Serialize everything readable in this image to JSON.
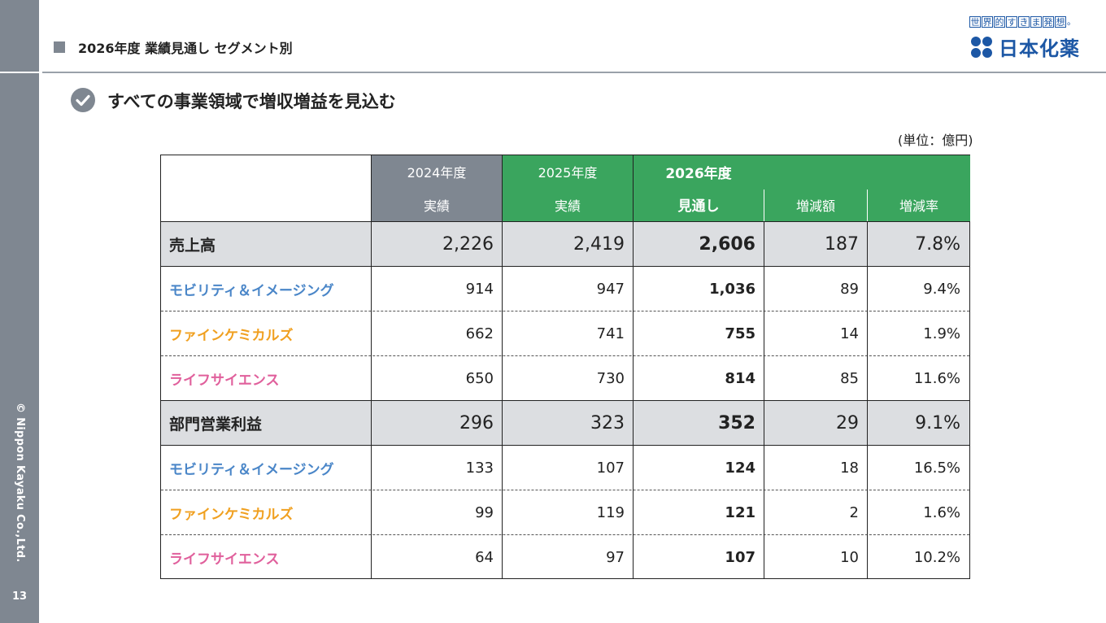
{
  "header": {
    "title": "2026年度 業績見通し セグメント別",
    "slogan_chars": [
      "世",
      "界",
      "的",
      "す",
      "き",
      "ま",
      "発",
      "想"
    ],
    "slogan_dot": "。",
    "logo_text": "日本化薬",
    "headline": "すべての事業領域で増収増益を見込む",
    "unit": "(単位：億円)"
  },
  "sidebar": {
    "copyright": "© Nippon Kayaku Co.,Ltd.",
    "page_number": "13"
  },
  "colors": {
    "brand_blue": "#1c57a5",
    "header_gray": "#7f8791",
    "header_green": "#3aa55e",
    "mobility": "#4a86c8",
    "fine_chemicals": "#f0a020",
    "life_science": "#e0609c",
    "band_gray": "#dcdee1"
  },
  "table": {
    "headers": {
      "y2024": "2024年度",
      "y2024_sub": "実績",
      "y2025": "2025年度",
      "y2025_sub": "実績",
      "y2026": "2026年度",
      "y2026_sub": "見通し",
      "diff": "増減額",
      "rate": "増減率"
    },
    "rows": [
      {
        "label": "売上高",
        "type": "total",
        "v2024": "2,226",
        "v2025": "2,419",
        "v2026": "2,606",
        "diff": "187",
        "rate": "7.8%"
      },
      {
        "label": "モビリティ＆イメージング",
        "type": "mobility",
        "v2024": "914",
        "v2025": "947",
        "v2026": "1,036",
        "diff": "89",
        "rate": "9.4%"
      },
      {
        "label": "ファインケミカルズ",
        "type": "fine",
        "v2024": "662",
        "v2025": "741",
        "v2026": "755",
        "diff": "14",
        "rate": "1.9%"
      },
      {
        "label": "ライフサイエンス",
        "type": "life",
        "v2024": "650",
        "v2025": "730",
        "v2026": "814",
        "diff": "85",
        "rate": "11.6%"
      },
      {
        "label": "部門営業利益",
        "type": "total",
        "v2024": "296",
        "v2025": "323",
        "v2026": "352",
        "diff": "29",
        "rate": "9.1%"
      },
      {
        "label": "モビリティ＆イメージング",
        "type": "mobility",
        "v2024": "133",
        "v2025": "107",
        "v2026": "124",
        "diff": "18",
        "rate": "16.5%"
      },
      {
        "label": "ファインケミカルズ",
        "type": "fine",
        "v2024": "99",
        "v2025": "119",
        "v2026": "121",
        "diff": "2",
        "rate": "1.6%"
      },
      {
        "label": "ライフサイエンス",
        "type": "life",
        "v2024": "64",
        "v2025": "97",
        "v2026": "107",
        "diff": "10",
        "rate": "10.2%"
      }
    ]
  }
}
